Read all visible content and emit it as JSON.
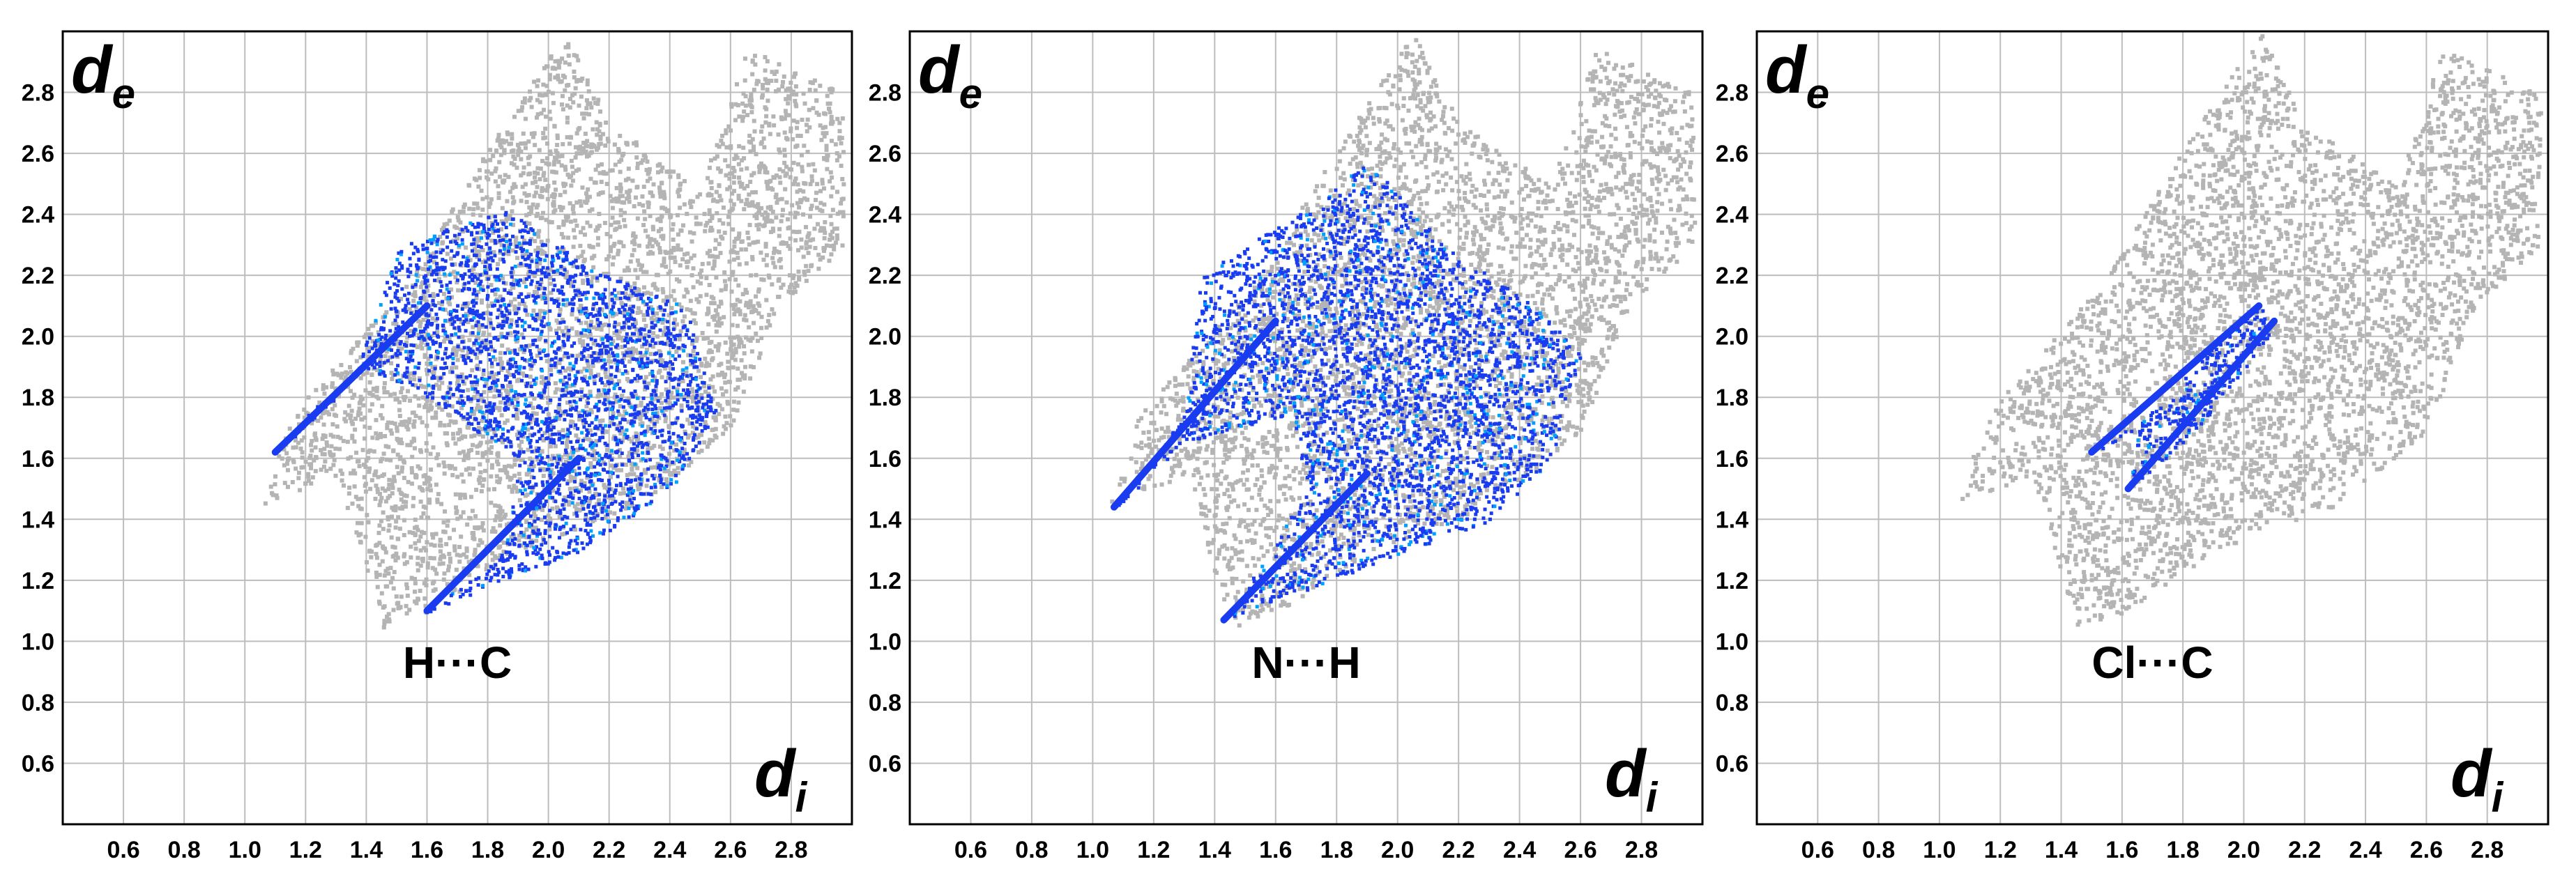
{
  "figure": {
    "panel_count": 3
  },
  "chart_data": [
    {
      "type": "scatter",
      "plot_kind": "Hirshfeld 2D fingerprint plot",
      "title": "",
      "contact_label": "H···C",
      "xlabel": "d",
      "xlabel_subscript": "i",
      "ylabel": "d",
      "ylabel_subscript": "e",
      "xlim": [
        0.4,
        3.0
      ],
      "ylim": [
        0.4,
        3.0
      ],
      "xticks": [
        "0.6",
        "0.8",
        "1.0",
        "1.2",
        "1.4",
        "1.6",
        "1.8",
        "2.0",
        "2.2",
        "2.4",
        "2.6",
        "2.8"
      ],
      "yticks": [
        "0.6",
        "0.8",
        "1.0",
        "1.2",
        "1.4",
        "1.6",
        "1.8",
        "2.0",
        "2.2",
        "2.4",
        "2.6",
        "2.8"
      ],
      "grid": true,
      "colors": {
        "full_plot": "#b4b4b4",
        "highlight": "#1a3cf0",
        "highlight_dense": "#00a0ff"
      },
      "series": [
        {
          "role": "full fingerprint (gray)",
          "outline": [
            [
              1.05,
              1.45
            ],
            [
              1.3,
              1.55
            ],
            [
              1.45,
              1.05
            ],
            [
              1.6,
              1.1
            ],
            [
              1.9,
              1.3
            ],
            [
              2.3,
              1.45
            ],
            [
              2.6,
              1.7
            ],
            [
              2.75,
              2.1
            ],
            [
              2.97,
              2.3
            ],
            [
              2.97,
              2.8
            ],
            [
              2.65,
              2.95
            ],
            [
              2.5,
              2.5
            ],
            [
              2.2,
              2.7
            ],
            [
              2.05,
              3.0
            ],
            [
              1.75,
              2.55
            ],
            [
              1.55,
              2.2
            ],
            [
              1.15,
              1.75
            ]
          ]
        },
        {
          "role": "H···C contacts (blue)",
          "spikes": [
            {
              "tip": [
                1.1,
                1.62
              ],
              "base": [
                1.6,
                2.1
              ]
            },
            {
              "tip": [
                1.6,
                1.1
              ],
              "base": [
                2.1,
                1.6
              ]
            }
          ],
          "outline": [
            [
              1.1,
              1.62
            ],
            [
              1.35,
              1.85
            ],
            [
              1.5,
              2.3
            ],
            [
              1.85,
              2.42
            ],
            [
              2.2,
              2.2
            ],
            [
              2.45,
              2.1
            ],
            [
              2.55,
              1.75
            ],
            [
              2.4,
              1.5
            ],
            [
              2.1,
              1.3
            ],
            [
              1.6,
              1.1
            ],
            [
              1.85,
              1.3
            ],
            [
              1.9,
              1.6
            ],
            [
              1.6,
              1.8
            ],
            [
              1.4,
              1.9
            ],
            [
              1.2,
              1.75
            ]
          ]
        }
      ]
    },
    {
      "type": "scatter",
      "plot_kind": "Hirshfeld 2D fingerprint plot",
      "title": "",
      "contact_label": "N···H",
      "xlabel": "d",
      "xlabel_subscript": "i",
      "ylabel": "d",
      "ylabel_subscript": "e",
      "xlim": [
        0.4,
        3.0
      ],
      "ylim": [
        0.4,
        3.0
      ],
      "xticks": [
        "0.6",
        "0.8",
        "1.0",
        "1.2",
        "1.4",
        "1.6",
        "1.8",
        "2.0",
        "2.2",
        "2.4",
        "2.6",
        "2.8"
      ],
      "yticks": [
        "0.6",
        "0.8",
        "1.0",
        "1.2",
        "1.4",
        "1.6",
        "1.8",
        "2.0",
        "2.2",
        "2.4",
        "2.6",
        "2.8"
      ],
      "grid": true,
      "colors": {
        "full_plot": "#b4b4b4",
        "highlight": "#1a3cf0",
        "highlight_dense": "#00a0ff"
      },
      "series": [
        {
          "role": "full fingerprint (gray)",
          "outline": [
            [
              1.05,
              1.45
            ],
            [
              1.3,
              1.55
            ],
            [
              1.45,
              1.05
            ],
            [
              1.6,
              1.1
            ],
            [
              1.9,
              1.3
            ],
            [
              2.3,
              1.45
            ],
            [
              2.6,
              1.7
            ],
            [
              2.75,
              2.1
            ],
            [
              2.97,
              2.3
            ],
            [
              2.97,
              2.8
            ],
            [
              2.65,
              2.95
            ],
            [
              2.5,
              2.5
            ],
            [
              2.2,
              2.7
            ],
            [
              2.05,
              3.0
            ],
            [
              1.75,
              2.55
            ],
            [
              1.55,
              2.2
            ],
            [
              1.15,
              1.75
            ]
          ]
        },
        {
          "role": "N···H contacts (blue)",
          "spikes": [
            {
              "tip": [
                1.07,
                1.44
              ],
              "base": [
                1.6,
                2.05
              ]
            },
            {
              "tip": [
                1.43,
                1.07
              ],
              "base": [
                1.9,
                1.55
              ]
            }
          ],
          "outline": [
            [
              1.07,
              1.44
            ],
            [
              1.3,
              1.75
            ],
            [
              1.35,
              2.2
            ],
            [
              1.5,
              2.3
            ],
            [
              1.75,
              2.45
            ],
            [
              1.9,
              2.58
            ],
            [
              2.15,
              2.3
            ],
            [
              2.45,
              2.1
            ],
            [
              2.6,
              1.95
            ],
            [
              2.5,
              1.6
            ],
            [
              2.3,
              1.4
            ],
            [
              1.9,
              1.25
            ],
            [
              1.43,
              1.07
            ],
            [
              1.7,
              1.5
            ],
            [
              1.65,
              1.75
            ],
            [
              1.45,
              1.7
            ],
            [
              1.3,
              1.65
            ]
          ]
        }
      ]
    },
    {
      "type": "scatter",
      "plot_kind": "Hirshfeld 2D fingerprint plot",
      "title": "",
      "contact_label": "Cl···C",
      "xlabel": "d",
      "xlabel_subscript": "i",
      "ylabel": "d",
      "ylabel_subscript": "e",
      "xlim": [
        0.4,
        3.0
      ],
      "ylim": [
        0.4,
        3.0
      ],
      "xticks": [
        "0.6",
        "0.8",
        "1.0",
        "1.2",
        "1.4",
        "1.6",
        "1.8",
        "2.0",
        "2.2",
        "2.4",
        "2.6",
        "2.8"
      ],
      "yticks": [
        "0.6",
        "0.8",
        "1.0",
        "1.2",
        "1.4",
        "1.6",
        "1.8",
        "2.0",
        "2.2",
        "2.4",
        "2.6",
        "2.8"
      ],
      "grid": true,
      "colors": {
        "full_plot": "#b4b4b4",
        "highlight": "#1a3cf0",
        "highlight_dense": "#00a0ff"
      },
      "series": [
        {
          "role": "full fingerprint (gray)",
          "outline": [
            [
              1.05,
              1.45
            ],
            [
              1.3,
              1.55
            ],
            [
              1.45,
              1.05
            ],
            [
              1.6,
              1.1
            ],
            [
              1.9,
              1.3
            ],
            [
              2.3,
              1.45
            ],
            [
              2.6,
              1.7
            ],
            [
              2.75,
              2.1
            ],
            [
              2.97,
              2.3
            ],
            [
              2.97,
              2.8
            ],
            [
              2.65,
              2.95
            ],
            [
              2.5,
              2.5
            ],
            [
              2.2,
              2.7
            ],
            [
              2.05,
              3.0
            ],
            [
              1.75,
              2.55
            ],
            [
              1.55,
              2.2
            ],
            [
              1.15,
              1.75
            ]
          ]
        },
        {
          "role": "Cl···C contacts (blue)",
          "spikes": [
            {
              "tip": [
                1.5,
                1.62
              ],
              "base": [
                2.05,
                2.1
              ]
            },
            {
              "tip": [
                1.62,
                1.5
              ],
              "base": [
                2.1,
                2.05
              ]
            }
          ],
          "outline": [
            [
              1.5,
              1.62
            ],
            [
              1.75,
              1.8
            ],
            [
              1.95,
              2.05
            ],
            [
              2.05,
              2.12
            ],
            [
              2.08,
              2.0
            ],
            [
              2.0,
              1.9
            ],
            [
              1.85,
              1.7
            ],
            [
              1.62,
              1.5
            ],
            [
              1.65,
              1.7
            ]
          ]
        }
      ]
    }
  ]
}
